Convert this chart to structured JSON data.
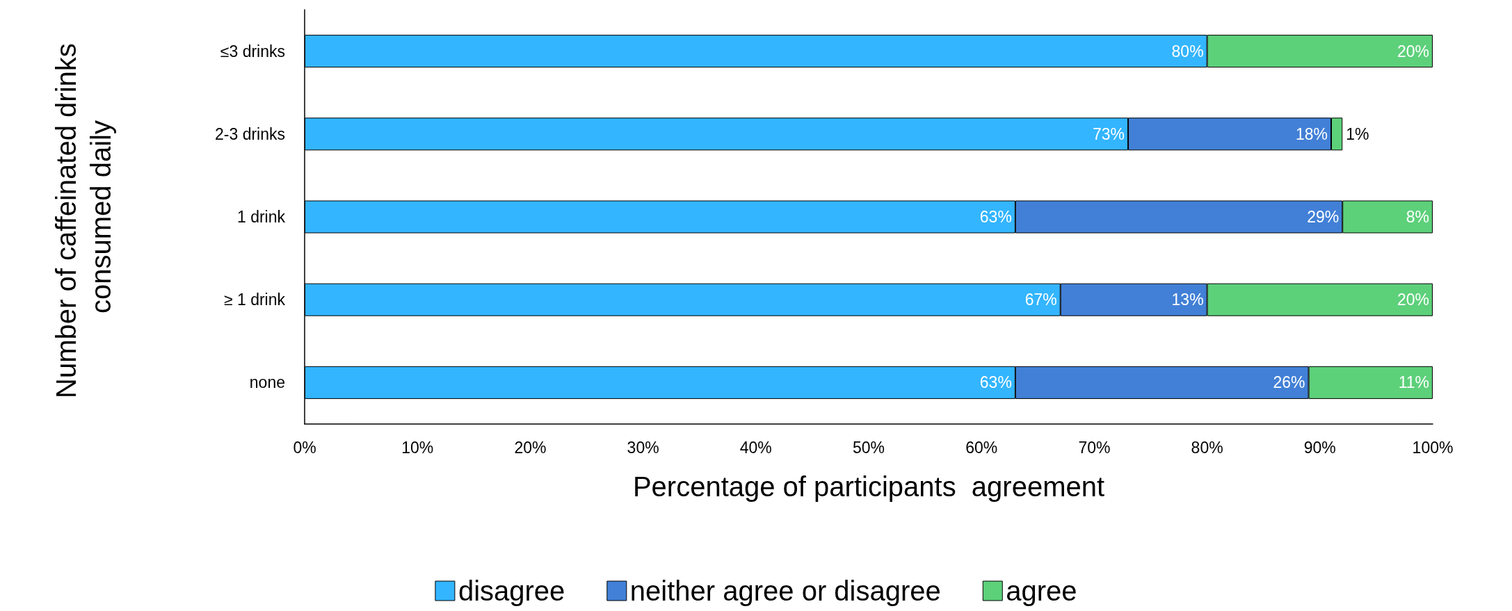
{
  "chart_data": {
    "type": "bar",
    "orientation": "horizontal",
    "stacked": true,
    "xlabel": "Percentage of participants  agreement",
    "ylabel": "Number of caffeinated drinks consumed daily",
    "categories": [
      "≤3 drinks",
      "2-3 drinks",
      "1 drink",
      "≥ 1 drink",
      "none"
    ],
    "series": [
      {
        "name": "disagree",
        "color": "#33b5ff",
        "values": [
          80,
          73,
          63,
          67,
          63
        ],
        "value_labels": [
          "80%",
          "73%",
          "63%",
          "67%",
          "63%"
        ]
      },
      {
        "name": "neither agree or disagree",
        "color": "#4180d6",
        "values": [
          null,
          18,
          29,
          13,
          26
        ],
        "value_labels": [
          null,
          "18%",
          "29%",
          "13%",
          "26%"
        ]
      },
      {
        "name": "agree",
        "color": "#5dd07a",
        "values": [
          20,
          1,
          8,
          20,
          11
        ],
        "value_labels": [
          "20%",
          "1%",
          "8%",
          "20%",
          "11%"
        ]
      }
    ],
    "xlim": [
      0,
      100
    ],
    "xticks": [
      {
        "value": 0,
        "label": "0%"
      },
      {
        "value": 10,
        "label": "10%"
      },
      {
        "value": 20,
        "label": "20%"
      },
      {
        "value": 30,
        "label": "30%"
      },
      {
        "value": 40,
        "label": "40%"
      },
      {
        "value": 50,
        "label": "50%"
      },
      {
        "value": 60,
        "label": "60%"
      },
      {
        "value": 70,
        "label": "70%"
      },
      {
        "value": 80,
        "label": "80%"
      },
      {
        "value": 90,
        "label": "90%"
      },
      {
        "value": 100,
        "label": "100%"
      }
    ],
    "grid": false,
    "legend": "bottom"
  }
}
